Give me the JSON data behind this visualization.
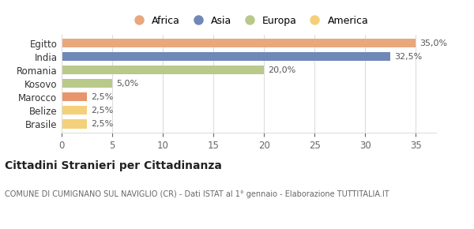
{
  "categories": [
    "Brasile",
    "Belize",
    "Marocco",
    "Kosovo",
    "Romania",
    "India",
    "Egitto"
  ],
  "values": [
    2.5,
    2.5,
    2.5,
    5.0,
    20.0,
    32.5,
    35.0
  ],
  "bar_colors": [
    "#f5d07a",
    "#f5d07a",
    "#e8956d",
    "#b8c98a",
    "#b8c98a",
    "#7088b8",
    "#e8a87c"
  ],
  "labels": [
    "2,5%",
    "2,5%",
    "2,5%",
    "5,0%",
    "20,0%",
    "32,5%",
    "35,0%"
  ],
  "legend_entries": [
    {
      "label": "Africa",
      "color": "#e8a87c"
    },
    {
      "label": "Asia",
      "color": "#7088b8"
    },
    {
      "label": "Europa",
      "color": "#b8c98a"
    },
    {
      "label": "America",
      "color": "#f5d07a"
    }
  ],
  "title": "Cittadini Stranieri per Cittadinanza",
  "subtitle": "COMUNE DI CUMIGNANO SUL NAVIGLIO (CR) - Dati ISTAT al 1° gennaio - Elaborazione TUTTITALIA.IT",
  "xlim": [
    0,
    37
  ],
  "xticks": [
    0,
    5,
    10,
    15,
    20,
    25,
    30,
    35
  ],
  "background_color": "#ffffff",
  "grid_color": "#dddddd"
}
